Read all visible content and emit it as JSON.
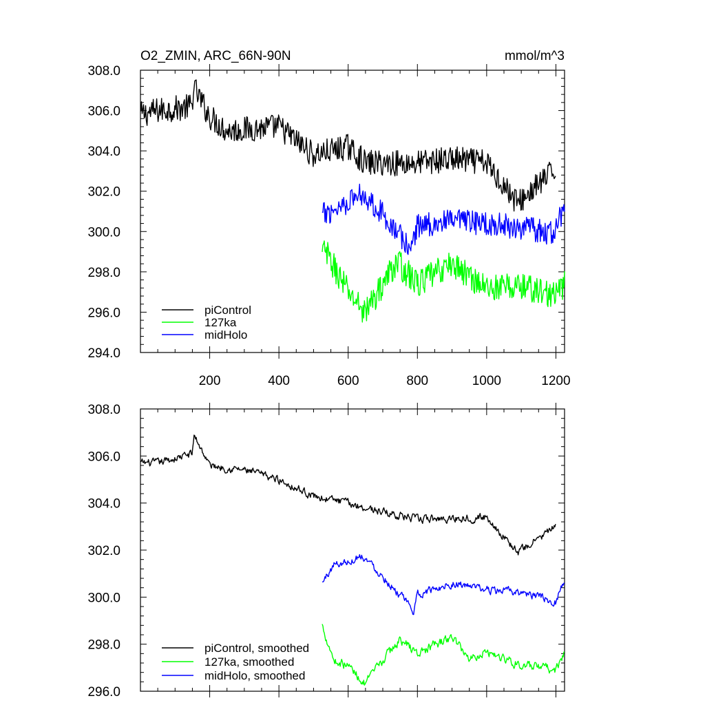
{
  "chart_data": [
    {
      "type": "line",
      "title": "O2_ZMIN, ARC_66N-90N",
      "units": "mmol/m^3",
      "xlim": [
        0,
        1225
      ],
      "ylim": [
        294,
        308
      ],
      "x_ticks": [
        200,
        400,
        600,
        800,
        1000,
        1200
      ],
      "y_ticks": [
        294,
        296,
        298,
        300,
        302,
        304,
        306,
        308
      ],
      "y_tick_labels": [
        "294.0",
        "296.0",
        "298.0",
        "300.0",
        "302.0",
        "304.0",
        "306.0",
        "308.0"
      ],
      "grid": false,
      "legend_position": "bottom-left",
      "series": [
        {
          "name": "piControl",
          "color": "#000000",
          "x": [
            1,
            1200
          ],
          "trend": [
            305.8,
            303.1
          ],
          "amplitude": 0.65,
          "anchors": [
            [
              1,
              305.8
            ],
            [
              50,
              306.0
            ],
            [
              150,
              306.2
            ],
            [
              152,
              307.2
            ],
            [
              200,
              305.7
            ],
            [
              250,
              305.0
            ],
            [
              400,
              305.2
            ],
            [
              500,
              303.8
            ],
            [
              600,
              304.2
            ],
            [
              650,
              303.4
            ],
            [
              800,
              303.4
            ],
            [
              900,
              303.6
            ],
            [
              1000,
              303.4
            ],
            [
              1090,
              301.4
            ],
            [
              1200,
              303.1
            ]
          ]
        },
        {
          "name": "127ka",
          "color": "#00ff00",
          "x": [
            525,
            1225
          ],
          "trend": [
            298.8,
            297.3
          ],
          "amplitude": 0.7,
          "anchors": [
            [
              525,
              298.8
            ],
            [
              530,
              299.1
            ],
            [
              600,
              297.0
            ],
            [
              650,
              296.0
            ],
            [
              700,
              297.4
            ],
            [
              740,
              298.5
            ],
            [
              800,
              297.4
            ],
            [
              900,
              298.4
            ],
            [
              1000,
              297.2
            ],
            [
              1100,
              297.3
            ],
            [
              1200,
              296.8
            ],
            [
              1225,
              297.4
            ]
          ]
        },
        {
          "name": "midHolo",
          "color": "#0000ff",
          "x": [
            525,
            1225
          ],
          "trend": [
            300.8,
            301.0
          ],
          "amplitude": 0.6,
          "anchors": [
            [
              525,
              300.8
            ],
            [
              600,
              301.5
            ],
            [
              640,
              301.9
            ],
            [
              700,
              300.9
            ],
            [
              780,
              299.1
            ],
            [
              800,
              300.3
            ],
            [
              900,
              300.5
            ],
            [
              1000,
              300.4
            ],
            [
              1100,
              300.2
            ],
            [
              1190,
              299.9
            ],
            [
              1222,
              301.0
            ]
          ]
        }
      ],
      "legend": [
        {
          "label": "piControl",
          "color": "#000000"
        },
        {
          "label": "127ka",
          "color": "#00ff00"
        },
        {
          "label": "midHolo",
          "color": "#0000ff"
        }
      ]
    },
    {
      "type": "line",
      "xlim": [
        0,
        1225
      ],
      "ylim": [
        296,
        308
      ],
      "x_ticks": [
        200,
        400,
        600,
        800,
        1000,
        1200
      ],
      "y_ticks": [
        296,
        298,
        300,
        302,
        304,
        306,
        308
      ],
      "y_tick_labels": [
        "296.0",
        "298.0",
        "300.0",
        "302.0",
        "304.0",
        "306.0",
        "308.0"
      ],
      "grid": false,
      "legend_position": "bottom-left",
      "series": [
        {
          "name": "piControl, smoothed",
          "color": "#000000",
          "x": [
            1,
            1200
          ],
          "trend": [
            305.6,
            303.0
          ],
          "amplitude": 0.3,
          "anchors": [
            [
              1,
              305.7
            ],
            [
              50,
              305.7
            ],
            [
              150,
              306.1
            ],
            [
              155,
              306.9
            ],
            [
              200,
              305.6
            ],
            [
              300,
              305.4
            ],
            [
              400,
              305.0
            ],
            [
              500,
              304.3
            ],
            [
              600,
              304.0
            ],
            [
              650,
              303.8
            ],
            [
              800,
              303.3
            ],
            [
              1000,
              303.4
            ],
            [
              1090,
              301.9
            ],
            [
              1200,
              303.0
            ]
          ]
        },
        {
          "name": "127ka, smoothed",
          "color": "#00ff00",
          "x": [
            525,
            1225
          ],
          "trend": [
            298.6,
            297.6
          ],
          "amplitude": 0.35,
          "anchors": [
            [
              525,
              298.8
            ],
            [
              560,
              297.3
            ],
            [
              600,
              297.1
            ],
            [
              650,
              296.3
            ],
            [
              700,
              297.3
            ],
            [
              750,
              298.2
            ],
            [
              800,
              297.6
            ],
            [
              900,
              298.3
            ],
            [
              950,
              297.4
            ],
            [
              1000,
              297.7
            ],
            [
              1100,
              297.1
            ],
            [
              1200,
              296.9
            ],
            [
              1225,
              297.6
            ]
          ]
        },
        {
          "name": "midHolo, smoothed",
          "color": "#0000ff",
          "x": [
            525,
            1225
          ],
          "trend": [
            300.6,
            300.8
          ],
          "amplitude": 0.3,
          "anchors": [
            [
              525,
              300.6
            ],
            [
              560,
              301.4
            ],
            [
              600,
              301.5
            ],
            [
              640,
              301.8
            ],
            [
              700,
              300.9
            ],
            [
              790,
              299.4
            ],
            [
              800,
              300.1
            ],
            [
              900,
              300.6
            ],
            [
              1000,
              300.3
            ],
            [
              1100,
              300.2
            ],
            [
              1200,
              299.8
            ],
            [
              1225,
              300.8
            ]
          ]
        }
      ],
      "legend": [
        {
          "label": "piControl, smoothed",
          "color": "#000000"
        },
        {
          "label": "127ka, smoothed",
          "color": "#00ff00"
        },
        {
          "label": "midHolo, smoothed",
          "color": "#0000ff"
        }
      ]
    }
  ]
}
